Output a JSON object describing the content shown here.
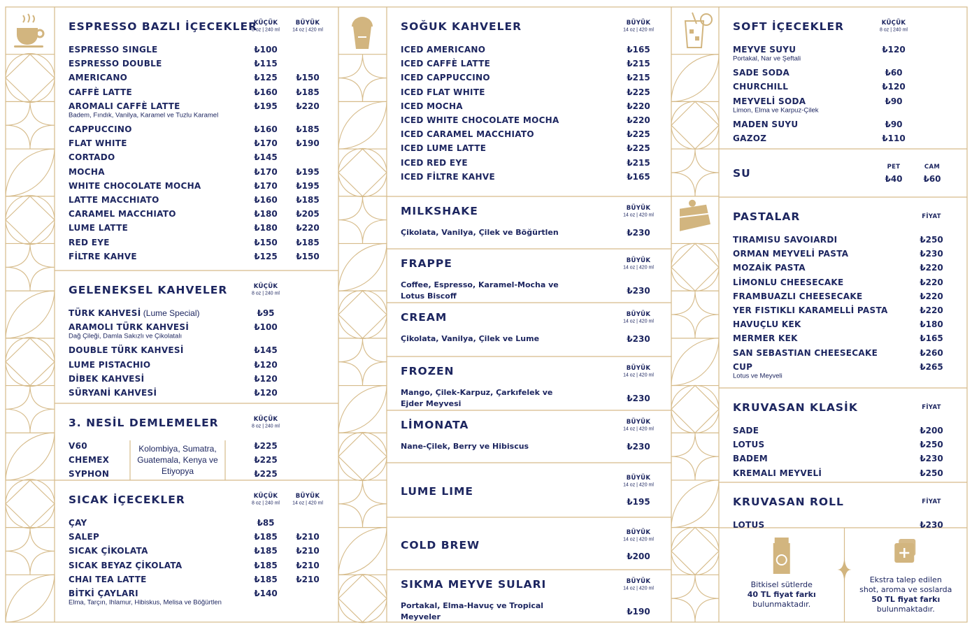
{
  "columns": [
    {
      "sections": [
        {
          "title": "ESPRESSO BAZLI İÇECEKLER",
          "headers": [
            {
              "label": "KÜÇÜK",
              "sub": "8 oz | 240 ml"
            },
            {
              "label": "BÜYÜK",
              "sub": "14 oz | 420 ml"
            }
          ],
          "items": [
            {
              "name": "ESPRESSO SINGLE",
              "prices": [
                "₺100"
              ]
            },
            {
              "name": "ESPRESSO DOUBLE",
              "prices": [
                "₺115"
              ]
            },
            {
              "name": "AMERICANO",
              "prices": [
                "₺125",
                "₺150"
              ]
            },
            {
              "name": "CAFFÈ LATTE",
              "prices": [
                "₺160",
                "₺185"
              ]
            },
            {
              "name": "AROMALI CAFFÈ LATTE",
              "prices": [
                "₺195",
                "₺220"
              ],
              "note": "Badem, Fındık, Vanilya, Karamel ve Tuzlu Karamel"
            },
            {
              "name": "CAPPUCCINO",
              "prices": [
                "₺160",
                "₺185"
              ]
            },
            {
              "name": "FLAT WHITE",
              "prices": [
                "₺170",
                "₺190"
              ]
            },
            {
              "name": "CORTADO",
              "prices": [
                "₺145"
              ]
            },
            {
              "name": "MOCHA",
              "prices": [
                "₺170",
                "₺195"
              ]
            },
            {
              "name": "WHITE CHOCOLATE MOCHA",
              "prices": [
                "₺170",
                "₺195"
              ]
            },
            {
              "name": "LATTE MACCHIATO",
              "prices": [
                "₺160",
                "₺185"
              ]
            },
            {
              "name": "CARAMEL MACCHIATO",
              "prices": [
                "₺180",
                "₺205"
              ]
            },
            {
              "name": "LUME LATTE",
              "prices": [
                "₺180",
                "₺220"
              ]
            },
            {
              "name": "RED EYE",
              "prices": [
                "₺150",
                "₺185"
              ]
            },
            {
              "name": "FİLTRE KAHVE",
              "prices": [
                "₺125",
                "₺150"
              ]
            }
          ]
        },
        {
          "title": "GELENEKSEL KAHVELER",
          "headers": [
            {
              "label": "KÜÇÜK",
              "sub": "8 oz | 240 ml"
            }
          ],
          "items": [
            {
              "name": "TÜRK KAHVESİ",
              "suffix": "(Lume Special)",
              "prices": [
                "₺95"
              ]
            },
            {
              "name": "ARAMOLI TÜRK KAHVESİ",
              "prices": [
                "₺100"
              ],
              "note": "Dağ Çileği, Damla Sakızlı ve Çikolatalı"
            },
            {
              "name": "DOUBLE TÜRK KAHVESİ",
              "prices": [
                "₺145"
              ]
            },
            {
              "name": "LUME PISTACHIO",
              "prices": [
                "₺120"
              ]
            },
            {
              "name": "DİBEK KAHVESİ",
              "prices": [
                "₺120"
              ]
            },
            {
              "name": "SÜRYANİ KAHVESİ",
              "prices": [
                "₺120"
              ]
            }
          ]
        },
        {
          "title": "3. NESİL DEMLEMELER",
          "headers": [
            {
              "label": "KÜÇÜK",
              "sub": "8 oz | 240 ml"
            }
          ],
          "origin": "Kolombiya, Sumatra, Guatemala, Kenya ve Etiyopya",
          "items": [
            {
              "name": "V60",
              "prices": [
                "₺225"
              ]
            },
            {
              "name": "CHEMEX",
              "prices": [
                "₺225"
              ]
            },
            {
              "name": "SYPHON",
              "prices": [
                "₺225"
              ]
            }
          ]
        },
        {
          "title": "SICAK İÇECEKLER",
          "headers": [
            {
              "label": "KÜÇÜK",
              "sub": "8 oz | 240 ml"
            },
            {
              "label": "BÜYÜK",
              "sub": "14 oz | 420 ml"
            }
          ],
          "items": [
            {
              "name": "ÇAY",
              "prices": [
                "₺85"
              ]
            },
            {
              "name": "SALEP",
              "prices": [
                "₺185",
                "₺210"
              ]
            },
            {
              "name": "SICAK ÇİKOLATA",
              "prices": [
                "₺185",
                "₺210"
              ]
            },
            {
              "name": "SICAK BEYAZ ÇİKOLATA",
              "prices": [
                "₺185",
                "₺210"
              ]
            },
            {
              "name": "CHAI TEA LATTE",
              "prices": [
                "₺185",
                "₺210"
              ]
            },
            {
              "name": "BİTKİ ÇAYLARI",
              "prices": [
                "₺140"
              ],
              "note": "Elma, Tarçın, Ihlamur, Hibiskus, Melisa ve Böğürtlen"
            }
          ]
        }
      ]
    },
    {
      "sections": [
        {
          "title": "SOĞUK KAHVELER",
          "headers": [
            {
              "label": "BÜYÜK",
              "sub": "14 oz | 420 ml"
            }
          ],
          "items": [
            {
              "name": "ICED AMERICANO",
              "prices": [
                "₺165"
              ]
            },
            {
              "name": "ICED CAFFÈ LATTE",
              "prices": [
                "₺215"
              ]
            },
            {
              "name": "ICED CAPPUCCINO",
              "prices": [
                "₺215"
              ]
            },
            {
              "name": "ICED FLAT WHITE",
              "prices": [
                "₺225"
              ]
            },
            {
              "name": "ICED MOCHA",
              "prices": [
                "₺220"
              ]
            },
            {
              "name": "ICED WHITE CHOCOLATE MOCHA",
              "prices": [
                "₺220"
              ]
            },
            {
              "name": "ICED CARAMEL MACCHIATO",
              "prices": [
                "₺225"
              ]
            },
            {
              "name": "ICED LUME LATTE",
              "prices": [
                "₺225"
              ]
            },
            {
              "name": "ICED RED EYE",
              "prices": [
                "₺215"
              ]
            },
            {
              "name": "ICED FİLTRE KAHVE",
              "prices": [
                "₺165"
              ]
            }
          ]
        },
        {
          "title": "MILKSHAKE",
          "headers": [
            {
              "label": "BÜYÜK",
              "sub": "14 oz | 420 ml"
            }
          ],
          "description": "Çikolata, Vanilya, Çilek ve Böğürtlen",
          "price": "₺230"
        },
        {
          "title": "FRAPPE",
          "headers": [
            {
              "label": "BÜYÜK",
              "sub": "14 oz | 420 ml"
            }
          ],
          "description": "Coffee, Espresso, Karamel-Mocha ve Lotus Biscoff",
          "price": "₺230"
        },
        {
          "title": "CREAM",
          "headers": [
            {
              "label": "BÜYÜK",
              "sub": "14 oz | 420 ml"
            }
          ],
          "description": "Çikolata, Vanilya, Çilek ve Lume",
          "price": "₺230"
        },
        {
          "title": "FROZEN",
          "headers": [
            {
              "label": "BÜYÜK",
              "sub": "14 oz | 420 ml"
            }
          ],
          "description": "Mango, Çilek-Karpuz, Çarkıfelek ve Ejder Meyvesi",
          "price": "₺230"
        },
        {
          "title": "LİMONATA",
          "headers": [
            {
              "label": "BÜYÜK",
              "sub": "14 oz | 420 ml"
            }
          ],
          "description": "Nane-Çilek, Berry ve Hibiscus",
          "price": "₺230"
        },
        {
          "title": "LUME LIME",
          "headers": [
            {
              "label": "BÜYÜK",
              "sub": "14 oz | 420 ml"
            }
          ],
          "price": "₺195"
        },
        {
          "title": "COLD BREW",
          "headers": [
            {
              "label": "BÜYÜK",
              "sub": "14 oz | 420 ml"
            }
          ],
          "price": "₺200"
        },
        {
          "title": "SIKMA MEYVE SULARI",
          "headers": [
            {
              "label": "BÜYÜK",
              "sub": "14 oz | 420 ml"
            }
          ],
          "description": "Portakal, Elma-Havuç ve Tropical Meyveler",
          "price": "₺190"
        }
      ]
    },
    {
      "sections": [
        {
          "title": "SOFT İÇECEKLER",
          "headers": [
            {
              "label": "KÜÇÜK",
              "sub": "8 oz | 240 ml"
            }
          ],
          "items": [
            {
              "name": "MEYVE SUYU",
              "prices": [
                "₺120"
              ],
              "note": "Portakal, Nar ve Şeftali"
            },
            {
              "name": "SADE SODA",
              "prices": [
                "₺60"
              ]
            },
            {
              "name": "CHURCHILL",
              "prices": [
                "₺120"
              ]
            },
            {
              "name": "MEYVELİ SODA",
              "prices": [
                "₺90"
              ],
              "note": "Limon, Elma ve Karpuz-Çilek"
            },
            {
              "name": "MADEN SUYU",
              "prices": [
                "₺90"
              ]
            },
            {
              "name": "GAZOZ",
              "prices": [
                "₺110"
              ]
            }
          ]
        },
        {
          "title": "SU",
          "headers": [
            {
              "label": "PET"
            },
            {
              "label": "CAM"
            }
          ],
          "prices": [
            "₺40",
            "₺60"
          ]
        },
        {
          "title": "PASTALAR",
          "headers": [
            {
              "label": "FİYAT"
            }
          ],
          "items": [
            {
              "name": "TIRAMISU SAVOIARDI",
              "prices": [
                "₺250"
              ]
            },
            {
              "name": "ORMAN MEYVELİ PASTA",
              "prices": [
                "₺230"
              ]
            },
            {
              "name": "MOZAİK PASTA",
              "prices": [
                "₺220"
              ]
            },
            {
              "name": "LİMONLU CHEESECAKE",
              "prices": [
                "₺220"
              ]
            },
            {
              "name": "FRAMBUAZLI CHEESECAKE",
              "prices": [
                "₺220"
              ]
            },
            {
              "name": "YER FISTIKLI KARAMELLİ PASTA",
              "prices": [
                "₺220"
              ]
            },
            {
              "name": "HAVUÇLU KEK",
              "prices": [
                "₺180"
              ]
            },
            {
              "name": "MERMER KEK",
              "prices": [
                "₺165"
              ]
            },
            {
              "name": "SAN SEBASTIAN CHEESECAKE",
              "prices": [
                "₺260"
              ]
            },
            {
              "name": "CUP",
              "prices": [
                "₺265"
              ],
              "note": "Lotus ve Meyveli"
            }
          ]
        },
        {
          "title": "KRUVASAN KLASİK",
          "headers": [
            {
              "label": "FİYAT"
            }
          ],
          "items": [
            {
              "name": "SADE",
              "prices": [
                "₺200"
              ]
            },
            {
              "name": "LOTUS",
              "prices": [
                "₺250"
              ]
            },
            {
              "name": "BADEM",
              "prices": [
                "₺230"
              ]
            },
            {
              "name": "KREMALI MEYVELİ",
              "prices": [
                "₺250"
              ]
            }
          ]
        },
        {
          "title": "KRUVASAN ROLL",
          "headers": [
            {
              "label": "FİYAT"
            }
          ],
          "items": [
            {
              "name": "LOTUS",
              "prices": [
                "₺230"
              ]
            }
          ]
        },
        {
          "notes": [
            {
              "lines": [
                {
                  "text": "Bitkisel sütlerde"
                },
                {
                  "text": "40 TL fiyat farkı",
                  "bold": true
                },
                {
                  "text": "bulunmaktadır."
                }
              ]
            },
            {
              "lines": [
                {
                  "text": "Ekstra talep edilen"
                },
                {
                  "text": "shot, aroma ve soslarda"
                },
                {
                  "text": "50 TL fiyat farkı",
                  "bold": true
                },
                {
                  "text": "bulunmaktadır."
                }
              ]
            }
          ]
        }
      ]
    }
  ]
}
